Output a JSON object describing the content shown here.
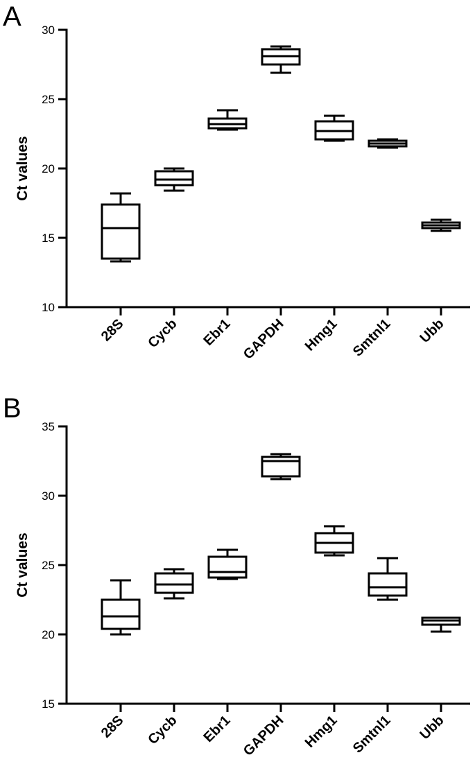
{
  "chart_data": [
    {
      "type": "box",
      "panel_label": "A",
      "ylabel": "Ct values",
      "ylim": [
        10,
        30
      ],
      "yticks": [
        10,
        15,
        20,
        25,
        30
      ],
      "categories": [
        "28S",
        "Cycb",
        "Ebr1",
        "GAPDH",
        "Hmg1",
        "Smtnl1",
        "Ubb"
      ],
      "boxes": [
        {
          "min": 13.3,
          "q1": 13.5,
          "median": 15.7,
          "q3": 17.4,
          "max": 18.2
        },
        {
          "min": 18.4,
          "q1": 18.8,
          "median": 19.2,
          "q3": 19.8,
          "max": 20.0
        },
        {
          "min": 22.8,
          "q1": 22.9,
          "median": 23.2,
          "q3": 23.6,
          "max": 24.2
        },
        {
          "min": 26.9,
          "q1": 27.5,
          "median": 28.1,
          "q3": 28.6,
          "max": 28.8
        },
        {
          "min": 22.0,
          "q1": 22.1,
          "median": 22.7,
          "q3": 23.4,
          "max": 23.8
        },
        {
          "min": 21.5,
          "q1": 21.6,
          "median": 21.8,
          "q3": 22.0,
          "max": 22.1
        },
        {
          "min": 15.5,
          "q1": 15.7,
          "median": 15.9,
          "q3": 16.1,
          "max": 16.3
        }
      ],
      "grid": false
    },
    {
      "type": "box",
      "panel_label": "B",
      "ylabel": "Ct values",
      "ylim": [
        15,
        35
      ],
      "yticks": [
        15,
        20,
        25,
        30,
        35
      ],
      "categories": [
        "28S",
        "Cycb",
        "Ebr1",
        "GAPDH",
        "Hmg1",
        "Smtnl1",
        "Ubb"
      ],
      "boxes": [
        {
          "min": 20.0,
          "q1": 20.4,
          "median": 21.3,
          "q3": 22.5,
          "max": 23.9
        },
        {
          "min": 22.6,
          "q1": 23.0,
          "median": 23.6,
          "q3": 24.4,
          "max": 24.7
        },
        {
          "min": 24.0,
          "q1": 24.1,
          "median": 24.5,
          "q3": 25.6,
          "max": 26.1
        },
        {
          "min": 31.2,
          "q1": 31.4,
          "median": 32.5,
          "q3": 32.8,
          "max": 33.0
        },
        {
          "min": 25.7,
          "q1": 25.9,
          "median": 26.6,
          "q3": 27.3,
          "max": 27.8
        },
        {
          "min": 22.5,
          "q1": 22.8,
          "median": 23.4,
          "q3": 24.4,
          "max": 25.5
        },
        {
          "min": 20.2,
          "q1": 20.7,
          "median": 21.0,
          "q3": 21.2,
          "max": 21.2
        }
      ],
      "grid": false
    }
  ]
}
